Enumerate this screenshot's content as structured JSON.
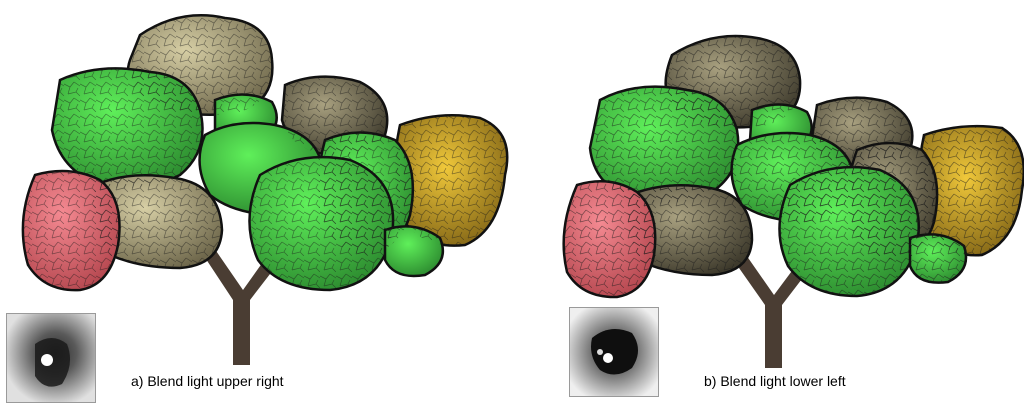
{
  "panels": [
    {
      "caption": "a) Blend light upper right"
    },
    {
      "caption": "b) Blend light lower left"
    }
  ],
  "colors": {
    "green": "#3fbf3a",
    "green_dark": "#2f8a2f",
    "tan": "#b6ac86",
    "olive": "#8f8868",
    "gold": "#c9a225",
    "salmon": "#e8707a",
    "trunk": "#4a3d33",
    "outline": "#111111"
  }
}
